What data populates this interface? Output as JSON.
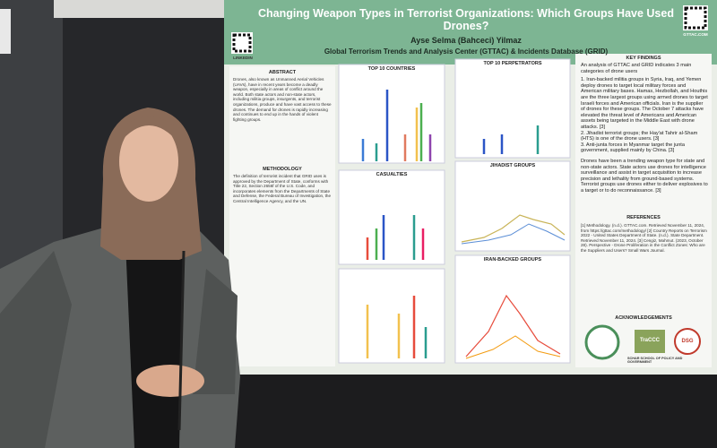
{
  "poster": {
    "title": "Changing Weapon Types in Terrorist Organizations: Which Groups Have Used Drones?",
    "author": "Ayse Selma (Bahceci) Yilmaz",
    "affiliation": "Global Terrorism Trends and Analysis Center (GTTAC) & Incidents Database (GRID)",
    "qr_left": "LINKEDIN",
    "qr_right": "GTTAC.COM",
    "abstract": {
      "heading": "ABSTRACT",
      "text": "Drones, also known as Unmanned Aerial Vehicles (UAVs), have in recent years become a deadly weapon, especially in areas of conflict around the world. Both state actors and non-state actors, including militia groups, insurgents, and terrorist organizations, produce and have vast access to these drones. The demand for drones is rapidly increasing and continues to end up in the hands of violent fighting groups."
    },
    "methodology": {
      "heading": "METHODOLOGY",
      "text": "The definition of terrorist incident that GRID uses is approved by the Department of State, conforms with Title 22, Section 2656f of the U.S. Code, and incorporates elements from the Departments of State and Defense, the Federal Bureau of Investigation, the Central Intelligence Agency, and the UN."
    },
    "charts": [
      "TOP 10 COUNTRIES",
      "TOP 10 PERPETRATORS",
      "CASUALTIES",
      "JIHADIST GROUPS",
      "IRAN-BACKED GROUPS"
    ],
    "key_findings": {
      "heading": "KEY FINDINGS",
      "intro": "An analysis of GTTAC and GRID indicates 3 main categories of drone users",
      "items": [
        "1. Iran-backed militia groups in Syria, Iraq, and Yemen deploy drones to target local military forces and American military bases. Hamas, Hezbollah, and Houthis are the three largest groups using armed drones to target Israeli forces and American officials. Iran is the supplier of drones for these groups. The October 7 attacks have elevated the threat level of Americans and American assets being targeted in the Middle East with drone attacks. [3]",
        "2. Jihadist terrorist groups; the Hay'at Tahrir al-Sham (HTS) is one of the drone users. [3]",
        "3. Anti-junta forces in Myanmar target the junta government, supplied mainly by China. [3]"
      ],
      "conclusion": "Drones have been a trending weapon type for state and non-state actors. State actors use drones for intelligence surveillance and assist in target acquisition to increase precision and lethality from ground-based systems. Terrorist groups use drones either to deliver explosives to a target or to do reconnaissance. [3]"
    },
    "references": {
      "heading": "REFERENCES",
      "text": "[1] Methodology. (n.d.). GTTAC.com. Retrieved November 11, 2024, from https://gttac.com/methodology/ [2] Country Reports on Terrorism 2022 - United States Department of State. (n.d.). State Department. Retrieved November 11, 2024. [3] Cengiz, Mahmut. (2023, October 28). Perspective - Drone Proliferation in the Conflict Zones: Who are the Suppliers and Users? Small Wars Journal."
    },
    "acknowledgements": {
      "heading": "ACKNOWLEDGEMENTS",
      "logos": [
        "TraCCC",
        "DSG",
        "SCHAR SCHOOL OF POLICY AND GOVERNMENT"
      ]
    }
  }
}
